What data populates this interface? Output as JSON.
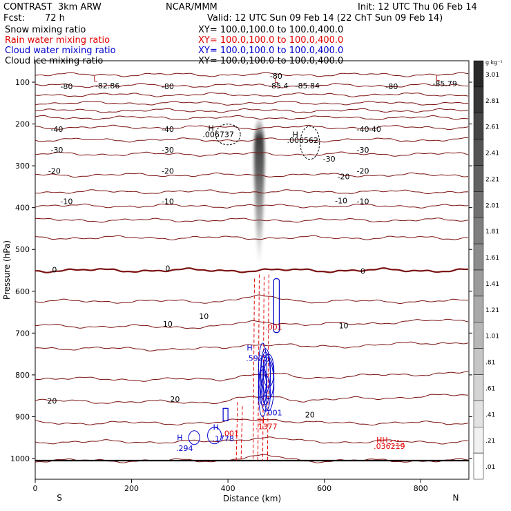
{
  "header": {
    "title": "CONTRAST  3km ARW",
    "center": "NCAR/MMM",
    "init": "Init: 12 UTC Thu 06 Feb 14",
    "fcst_label": "Fcst:",
    "fcst_value": "72 h",
    "valid": "Valid: 12 UTC Sun 09 Feb 14 (22 ChT Sun 09 Feb 14)"
  },
  "legend": [
    {
      "name": "Snow mixing ratio",
      "xy": "XY= 100.0,100.0 to 100.0,400.0",
      "color": "#000000"
    },
    {
      "name": "Rain water mixing ratio",
      "xy": "XY= 100.0,100.0 to 100.0,400.0",
      "color": "#e00000"
    },
    {
      "name": "Cloud water mixing ratio",
      "xy": "XY= 100.0,100.0 to 100.0,400.0",
      "color": "#0000cc"
    },
    {
      "name": "Cloud ice mixing ratio",
      "xy": "XY= 100.0,100.0 to 100.0,400.0",
      "color": "#000000"
    }
  ],
  "chart_data": {
    "type": "contour cross-section",
    "xlabel": "Distance (km)",
    "ylabel": "Pressure (hPa)",
    "xlim": [
      0,
      900
    ],
    "ylim": [
      1040,
      50
    ],
    "x_ticks": [
      0,
      200,
      400,
      600,
      800
    ],
    "x_tick_labels": [
      "0",
      "200",
      "400",
      "600",
      "800"
    ],
    "y_ticks": [
      100,
      200,
      300,
      400,
      500,
      600,
      700,
      800,
      900,
      1000
    ],
    "y_tick_labels": [
      "100",
      "200",
      "300",
      "400",
      "500",
      "600",
      "700",
      "800",
      "900",
      "1000"
    ],
    "x_end_labels": {
      "left": "S",
      "right": "N"
    },
    "colorbar": {
      "units": "g kg⁻¹",
      "levels": [
        "3.01",
        "2.81",
        "2.61",
        "2.41",
        "2.21",
        "2.01",
        "1.81",
        "1.61",
        "1.41",
        "1.21",
        "1.01",
        ".81",
        ".61",
        ".41",
        ".21",
        ".01"
      ]
    },
    "temperature_contours": [
      {
        "p": 82,
        "label": "-80"
      },
      {
        "p": 108,
        "label": "-80"
      },
      {
        "p": 130,
        "label": ""
      },
      {
        "p": 150,
        "label": ""
      },
      {
        "p": 168,
        "label": ""
      },
      {
        "p": 185,
        "label": ""
      },
      {
        "p": 208,
        "label": "-40"
      },
      {
        "p": 238,
        "label": "-30"
      },
      {
        "p": 272,
        "label": "-20"
      },
      {
        "p": 322,
        "label": "-10"
      },
      {
        "p": 362,
        "label": ""
      },
      {
        "p": 396,
        "label": ""
      },
      {
        "p": 430,
        "label": ""
      },
      {
        "p": 472,
        "label": ""
      },
      {
        "p": 550,
        "label": "0"
      },
      {
        "p": 624,
        "label": ""
      },
      {
        "p": 682,
        "label": "10"
      },
      {
        "p": 735,
        "label": ""
      },
      {
        "p": 808,
        "label": ""
      },
      {
        "p": 862,
        "label": "20"
      },
      {
        "p": 915,
        "label": ""
      },
      {
        "p": 960,
        "label": ""
      },
      {
        "p": 1005,
        "label": ""
      }
    ],
    "contour_labels_text": [
      {
        "x": 65,
        "p": 110,
        "text": "-80"
      },
      {
        "x": 275,
        "p": 110,
        "text": "-80"
      },
      {
        "x": 500,
        "p": 85,
        "text": "-80"
      },
      {
        "x": 740,
        "p": 110,
        "text": "-80"
      },
      {
        "x": 45,
        "p": 212,
        "text": "-40"
      },
      {
        "x": 275,
        "p": 212,
        "text": "-40"
      },
      {
        "x": 680,
        "p": 212,
        "text": "-40"
      },
      {
        "x": 705,
        "p": 212,
        "text": "-40"
      },
      {
        "x": 45,
        "p": 262,
        "text": "-30"
      },
      {
        "x": 275,
        "p": 262,
        "text": "-30"
      },
      {
        "x": 610,
        "p": 283,
        "text": "-30"
      },
      {
        "x": 680,
        "p": 262,
        "text": "-30"
      },
      {
        "x": 40,
        "p": 312,
        "text": "-20"
      },
      {
        "x": 275,
        "p": 312,
        "text": "-20"
      },
      {
        "x": 640,
        "p": 325,
        "text": "-20"
      },
      {
        "x": 680,
        "p": 312,
        "text": "-20"
      },
      {
        "x": 65,
        "p": 385,
        "text": "-10"
      },
      {
        "x": 275,
        "p": 385,
        "text": "-10"
      },
      {
        "x": 635,
        "p": 383,
        "text": "-10"
      },
      {
        "x": 680,
        "p": 385,
        "text": "-10"
      },
      {
        "x": 40,
        "p": 548,
        "text": "0"
      },
      {
        "x": 275,
        "p": 545,
        "text": "0"
      },
      {
        "x": 680,
        "p": 552,
        "text": "0"
      },
      {
        "x": 275,
        "p": 678,
        "text": "10"
      },
      {
        "x": 350,
        "p": 660,
        "text": "10"
      },
      {
        "x": 640,
        "p": 682,
        "text": "10"
      },
      {
        "x": 35,
        "p": 862,
        "text": "20"
      },
      {
        "x": 290,
        "p": 858,
        "text": "20"
      },
      {
        "x": 570,
        "p": 895,
        "text": "20"
      }
    ],
    "extrema": [
      {
        "x": 125,
        "p": 92,
        "text": "L",
        "color": "#b22222"
      },
      {
        "x": 150,
        "p": 108,
        "text": "-82.86",
        "color": "#000000"
      },
      {
        "x": 500,
        "p": 95,
        "text": "L",
        "color": "#b22222"
      },
      {
        "x": 505,
        "p": 108,
        "text": "-85.4",
        "color": "#000000"
      },
      {
        "x": 565,
        "p": 108,
        "text": "-85.84",
        "color": "#000000"
      },
      {
        "x": 835,
        "p": 90,
        "text": "L",
        "color": "#b22222"
      },
      {
        "x": 850,
        "p": 103,
        "text": "-85.79",
        "color": "#000000"
      },
      {
        "x": 365,
        "p": 210,
        "text": "H",
        "color": "#000000"
      },
      {
        "x": 380,
        "p": 225,
        "text": ".006737",
        "color": "#000000"
      },
      {
        "x": 540,
        "p": 225,
        "text": "H",
        "color": "#000000"
      },
      {
        "x": 555,
        "p": 239,
        "text": ".006562",
        "color": "#000000"
      },
      {
        "x": 445,
        "p": 735,
        "text": "H",
        "color": "#0000cc"
      },
      {
        "x": 460,
        "p": 760,
        "text": ".5925",
        "color": "#0000cc"
      },
      {
        "x": 495,
        "p": 685,
        "text": ".001",
        "color": "#e00000"
      },
      {
        "x": 495,
        "p": 890,
        "text": ".001",
        "color": "#0000cc"
      },
      {
        "x": 470,
        "p": 908,
        "text": "H",
        "color": "#e00000"
      },
      {
        "x": 480,
        "p": 923,
        "text": ".1377",
        "color": "#e00000"
      },
      {
        "x": 405,
        "p": 940,
        "text": ".001",
        "color": "#e00000"
      },
      {
        "x": 375,
        "p": 925,
        "text": "H",
        "color": "#0000cc"
      },
      {
        "x": 390,
        "p": 952,
        "text": ".1778",
        "color": "#0000cc"
      },
      {
        "x": 300,
        "p": 950,
        "text": "H",
        "color": "#0000cc"
      },
      {
        "x": 310,
        "p": 975,
        "text": ".294",
        "color": "#0000cc"
      },
      {
        "x": 720,
        "p": 955,
        "text": "HH",
        "color": "#e00000"
      },
      {
        "x": 735,
        "p": 970,
        "text": ".036219",
        "color": "#e00000"
      }
    ]
  }
}
